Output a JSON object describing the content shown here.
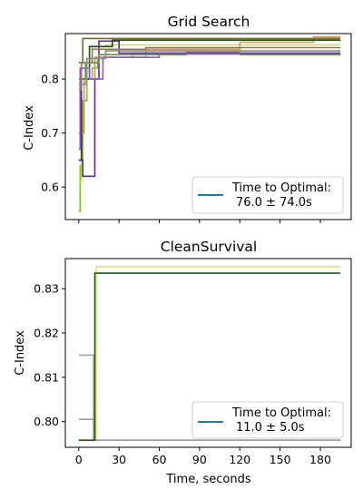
{
  "chart_data": [
    {
      "type": "line",
      "title": "Grid Search",
      "xlabel": "",
      "ylabel": "C-Index",
      "xlim": [
        -10,
        203
      ],
      "ylim": [
        0.54,
        0.884
      ],
      "yticks": [
        0.6,
        0.7,
        0.8
      ],
      "ytick_labels": [
        "0.6",
        "0.7",
        "0.8"
      ],
      "grid": false,
      "legend": {
        "placement": "lower right",
        "entries": [
          {
            "label_line1": "Time to Optimal:",
            "label_line2": "76.0 ± 74.0s",
            "color": "#1f77b4"
          }
        ]
      },
      "series": [
        {
          "color": "#7cc41e",
          "x": [
            0,
            1,
            3,
            6,
            10,
            14,
            40,
            195
          ],
          "y": [
            0.555,
            0.64,
            0.76,
            0.8,
            0.82,
            0.84,
            0.848,
            0.848
          ]
        },
        {
          "color": "#d2d94a",
          "x": [
            0,
            2,
            5,
            10,
            20,
            195
          ],
          "y": [
            0.61,
            0.79,
            0.83,
            0.86,
            0.863,
            0.863
          ]
        },
        {
          "color": "#c79a6e",
          "x": [
            0,
            4,
            12,
            50,
            120,
            175,
            195
          ],
          "y": [
            0.7,
            0.8,
            0.84,
            0.855,
            0.868,
            0.878,
            0.878
          ]
        },
        {
          "color": "#1a4a12",
          "x": [
            0,
            2,
            8,
            25,
            195
          ],
          "y": [
            0.65,
            0.8,
            0.86,
            0.872,
            0.872
          ]
        },
        {
          "color": "#7a6a2a",
          "x": [
            0,
            3,
            195
          ],
          "y": [
            0.83,
            0.875,
            0.875
          ]
        },
        {
          "color": "#5a2a8a",
          "x": [
            0,
            3,
            12,
            15,
            30,
            195
          ],
          "y": [
            0.65,
            0.62,
            0.8,
            0.87,
            0.848,
            0.848
          ]
        },
        {
          "color": "#9b4fd0",
          "x": [
            0,
            1,
            8,
            18,
            60,
            195
          ],
          "y": [
            0.67,
            0.82,
            0.8,
            0.84,
            0.846,
            0.846
          ]
        },
        {
          "color": "#5a9a3a",
          "x": [
            0,
            5,
            15,
            80,
            120,
            195
          ],
          "y": [
            0.8,
            0.83,
            0.845,
            0.85,
            0.845,
            0.845
          ]
        },
        {
          "color": "#8a7a5a",
          "x": [
            0,
            2,
            10,
            50,
            195
          ],
          "y": [
            0.78,
            0.83,
            0.855,
            0.858,
            0.858
          ]
        },
        {
          "color": "#8c8c8c",
          "x": [
            0,
            6,
            20,
            195
          ],
          "y": [
            0.79,
            0.838,
            0.852,
            0.852
          ]
        }
      ]
    },
    {
      "type": "line",
      "title": "CleanSurvival",
      "xlabel": "Time, seconds",
      "ylabel": "C-Index",
      "xlim": [
        -10,
        203
      ],
      "ylim": [
        0.7942,
        0.8368
      ],
      "yticks": [
        0.8,
        0.81,
        0.82,
        0.83
      ],
      "ytick_labels": [
        "0.80",
        "0.81",
        "0.82",
        "0.83"
      ],
      "xticks": [
        0,
        30,
        60,
        90,
        120,
        150,
        180
      ],
      "xtick_labels": [
        "0",
        "30",
        "60",
        "90",
        "120",
        "150",
        "180"
      ],
      "grid": false,
      "legend": {
        "placement": "lower right",
        "entries": [
          {
            "label_line1": "Time to Optimal:",
            "label_line2": "11.0 ± 5.0s",
            "color": "#1f77b4"
          }
        ]
      },
      "series": [
        {
          "color": "#e0e070",
          "x": [
            0,
            13,
            195
          ],
          "y": [
            0.7958,
            0.835,
            0.835
          ]
        },
        {
          "color": "#c49a80",
          "x": [
            0,
            11,
            195
          ],
          "y": [
            0.815,
            0.7958,
            0.7958
          ]
        },
        {
          "color": "#a0a0a0",
          "x": [
            0,
            11,
            195
          ],
          "y": [
            0.8005,
            0.7958,
            0.7958
          ]
        },
        {
          "color": "#1a5a1a",
          "x": [
            0,
            12,
            195
          ],
          "y": [
            0.7958,
            0.8335,
            0.8335
          ]
        }
      ]
    }
  ]
}
